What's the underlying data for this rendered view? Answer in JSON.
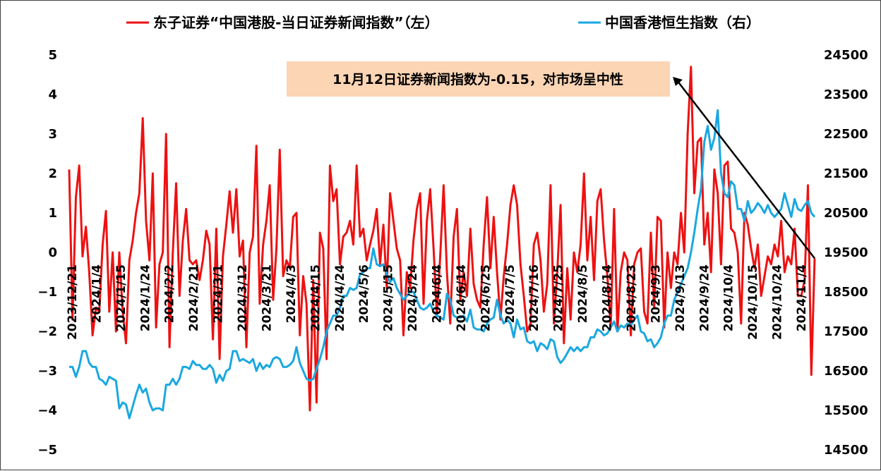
{
  "chart_data": {
    "type": "line",
    "legend": [
      {
        "name": "东子证券“中国港股-当日证券新闻指数”（左）",
        "color": "#ee1111"
      },
      {
        "name": "中国香港恒生指数（右）",
        "color": "#1aa8e0"
      }
    ],
    "legend_position": "top",
    "y_left": {
      "range": [
        -5,
        5
      ],
      "ticks": [
        "5",
        "4",
        "3",
        "2",
        "1",
        "0",
        "−1",
        "−2",
        "−3",
        "−4",
        "−5"
      ]
    },
    "y_right": {
      "range": [
        14500,
        24500
      ],
      "ticks": [
        "24500",
        "23500",
        "22500",
        "21500",
        "20500",
        "19500",
        "18500",
        "17500",
        "16500",
        "15500",
        "14500"
      ]
    },
    "x_ticks": [
      "2023/12/21",
      "2024/1/4",
      "2024/1/15",
      "2024/1/24",
      "2024/2/2",
      "2024/2/21",
      "2024/3/1",
      "2024/3/12",
      "2024/3/21",
      "2024/4/3",
      "2024/4/15",
      "2024/4/24",
      "2024/5/6",
      "2024/5/15",
      "2024/5/24",
      "2024/6/4",
      "2024/6/14",
      "2024/6/25",
      "2024/7/5",
      "2024/7/16",
      "2024/7/25",
      "2024/8/5",
      "2024/8/14",
      "2024/8/23",
      "2024/9/3",
      "2024/9/13",
      "2024/9/24",
      "2024/10/4",
      "2024/10/15",
      "2024/10/24",
      "2024/11/4"
    ],
    "annotation": {
      "text": "11月12日证券新闻指数为-0.15，对市场呈中性",
      "color": "#fcd5b4",
      "points_to": {
        "series": 0,
        "index": "last"
      }
    },
    "grid": false,
    "series": [
      {
        "name": "东子证券“中国港股-当日证券新闻指数”（左）",
        "axis": "left",
        "color": "#ee1111",
        "values": [
          2.1,
          -1.7,
          1.4,
          2.2,
          -0.1,
          0.65,
          -0.5,
          -2.1,
          -1.4,
          -1.5,
          0.2,
          1.05,
          -1.5,
          0.0,
          -2.0,
          0.0,
          -1.5,
          -2.3,
          -0.2,
          0.3,
          1.0,
          1.5,
          3.4,
          0.8,
          -0.2,
          2.0,
          -1.9,
          -0.3,
          0.0,
          3.0,
          -2.4,
          0.0,
          1.75,
          -1.1,
          0.3,
          1.1,
          -0.2,
          -0.3,
          -0.2,
          -0.7,
          -0.2,
          0.55,
          0.2,
          -2.2,
          0.6,
          -2.7,
          -0.1,
          0.7,
          1.55,
          0.5,
          1.6,
          -0.1,
          0.3,
          -2.4,
          0.0,
          0.4,
          2.7,
          -1.3,
          0.2,
          0.8,
          1.7,
          -1.2,
          0.1,
          2.6,
          -0.6,
          -0.2,
          -0.4,
          0.9,
          1.0,
          -2.1,
          -0.6,
          -1.3,
          -4.0,
          -0.7,
          -3.8,
          0.5,
          0.1,
          -2.7,
          2.2,
          1.3,
          1.6,
          -0.3,
          0.4,
          0.5,
          0.8,
          0.2,
          2.2,
          0.4,
          0.6,
          -0.2,
          0.2,
          0.55,
          1.1,
          -0.3,
          0.7,
          -0.9,
          1.5,
          0.8,
          0.1,
          -0.2,
          -2.1,
          -0.5,
          -0.9,
          0.3,
          1.1,
          1.5,
          -1.3,
          0.8,
          1.6,
          0.1,
          -1.6,
          -0.1,
          1.7,
          -0.5,
          -1.8,
          0.4,
          1.1,
          -1.2,
          -0.5,
          -1.1,
          0.6,
          -0.8,
          -1.2,
          -1.4,
          0.2,
          1.4,
          -0.4,
          0.9,
          -0.5,
          -1.7,
          -0.6,
          0.2,
          1.2,
          1.7,
          1.2,
          -0.3,
          -1.1,
          -2.0,
          -1.8,
          0.2,
          0.5,
          -0.2,
          -1.5,
          -0.8,
          1.7,
          -1.8,
          -0.5,
          1.2,
          -2.3,
          -0.4,
          -1.7,
          0.0,
          -0.5,
          0.2,
          2.0,
          -0.2,
          0.9,
          -0.7,
          1.3,
          1.6,
          0.3,
          -0.6,
          -1.9,
          1.1,
          -2.0,
          -0.5,
          0.0,
          -0.2,
          -2.1,
          -0.3,
          0.0,
          0.1,
          -1.5,
          -1.8,
          0.5,
          -1.4,
          0.9,
          0.8,
          -1.9,
          0.0,
          -0.9,
          0.0,
          -0.3,
          1.0,
          0.0,
          3.0,
          4.7,
          1.5,
          2.8,
          2.9,
          0.2,
          1.0,
          -0.5,
          2.1,
          1.5,
          -0.3,
          2.2,
          2.3,
          0.6,
          0.5,
          0.0,
          -1.8,
          1.0,
          0.7,
          0.1,
          -0.4,
          0.2,
          -1.1,
          -0.6,
          -0.1,
          -0.3,
          0.2,
          -0.1,
          0.8,
          -0.5,
          -0.1,
          -0.3,
          0.6,
          -1.1,
          -1.1,
          -0.7,
          1.7,
          -3.1,
          -0.15
        ]
      },
      {
        "name": "中国香港恒生指数（右）",
        "axis": "right",
        "color": "#1aa8e0",
        "values": [
          16600,
          16600,
          16350,
          16600,
          17000,
          17000,
          16700,
          16600,
          16600,
          16300,
          16250,
          16150,
          16350,
          16300,
          16250,
          15550,
          15700,
          15650,
          15300,
          15600,
          15900,
          16150,
          15950,
          16050,
          15700,
          15500,
          15550,
          15550,
          15500,
          16150,
          16150,
          16300,
          16150,
          16300,
          16600,
          16600,
          16550,
          16750,
          16650,
          16650,
          16550,
          16550,
          16650,
          16550,
          16200,
          16400,
          16250,
          16500,
          16550,
          17000,
          17000,
          16750,
          16800,
          16750,
          16700,
          16800,
          16500,
          16700,
          16550,
          16650,
          16600,
          16800,
          16850,
          16800,
          16600,
          16600,
          16650,
          16750,
          17100,
          16700,
          16500,
          16300,
          16250,
          16300,
          16550,
          16800,
          17100,
          17500,
          17700,
          17900,
          17900,
          18100,
          18400,
          18400,
          18600,
          18550,
          18600,
          18950,
          19000,
          19100,
          19100,
          19600,
          19200,
          19150,
          19200,
          18950,
          18750,
          18850,
          18600,
          18450,
          18300,
          18400,
          18500,
          18500,
          18300,
          18100,
          18050,
          18100,
          18200,
          18000,
          17900,
          17850,
          17800,
          18450,
          18300,
          17900,
          17850,
          17850,
          17900,
          17750,
          18050,
          17600,
          17550,
          17550,
          17500,
          17700,
          17800,
          17850,
          18300,
          17900,
          17700,
          17800,
          17700,
          17350,
          17800,
          17550,
          17600,
          17250,
          17200,
          17250,
          17000,
          17200,
          17150,
          17050,
          17300,
          17250,
          16850,
          16700,
          16800,
          16950,
          17100,
          17000,
          17100,
          17000,
          17100,
          17100,
          17350,
          17350,
          17550,
          17500,
          17400,
          17450,
          17600,
          17750,
          17500,
          17650,
          17600,
          17700,
          17650,
          17800,
          17900,
          17500,
          17450,
          17250,
          17300,
          17100,
          17200,
          17350,
          17700,
          17900,
          17900,
          18300,
          18500,
          18700,
          18900,
          19100,
          19500,
          20000,
          20600,
          21100,
          22300,
          22700,
          22100,
          22400,
          23100,
          21500,
          21000,
          20900,
          21300,
          21200,
          20600,
          20600,
          20300,
          20800,
          20500,
          20600,
          20750,
          20650,
          20500,
          20700,
          20500,
          20400,
          20500,
          20600,
          21000,
          20700,
          20400,
          20850,
          20600,
          20550,
          20700,
          20800,
          20500,
          20400
        ]
      }
    ]
  }
}
